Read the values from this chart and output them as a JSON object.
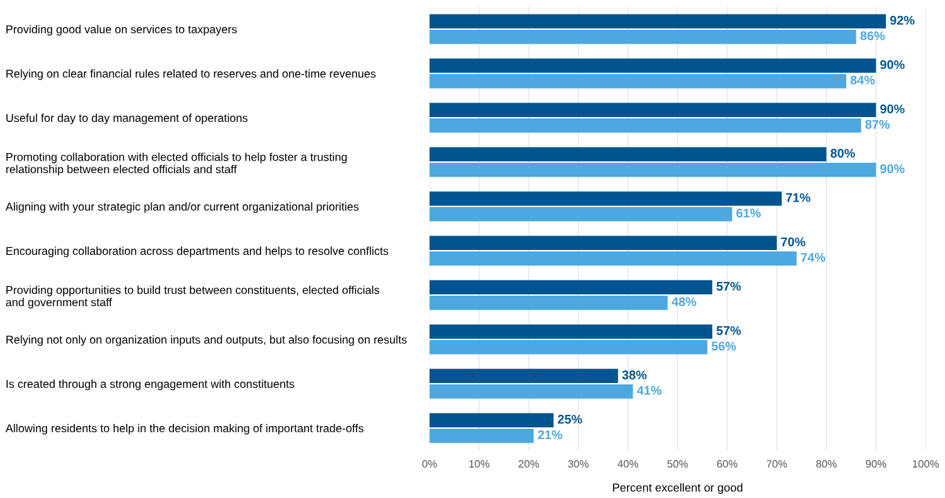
{
  "chart_data": {
    "type": "bar",
    "orientation": "horizontal",
    "xlabel": "Percent excellent or good",
    "categories": [
      "Providing good value on services to taxpayers",
      "Relying on clear financial rules related to reserves and one-time revenues",
      "Useful for day to day management of operations",
      "Promoting collaboration with elected officials to help foster a trusting\nrelationship between elected officials and staff",
      "Aligning with your strategic plan and/or current organizational priorities",
      "Encouraging collaboration across departments and helps to resolve conflicts",
      "Providing opportunities to build trust between constituents, elected officials\nand government staff",
      "Relying not only on organization inputs and outputs, but also focusing on results",
      "Is created through a strong engagement with constituents",
      "Allowing residents to help in the decision making of important trade-offs"
    ],
    "series": [
      {
        "color": "#00548f",
        "values": [
          92,
          90,
          90,
          80,
          71,
          70,
          57,
          57,
          38,
          25
        ],
        "value_labels": [
          "92%",
          "90%",
          "90%",
          "80%",
          "71%",
          "70%",
          "57%",
          "57%",
          "38%",
          "25%"
        ]
      },
      {
        "color": "#4da7e0",
        "values": [
          86,
          84,
          87,
          90,
          61,
          74,
          48,
          56,
          41,
          21
        ],
        "value_labels": [
          "86%",
          "84%",
          "87%",
          "90%",
          "61%",
          "74%",
          "48%",
          "56%",
          "41%",
          "21%"
        ]
      }
    ],
    "xlim": [
      0,
      100
    ],
    "xticks": [
      {
        "value": 0,
        "label": "0%"
      },
      {
        "value": 10,
        "label": "10%"
      },
      {
        "value": 20,
        "label": "20%"
      },
      {
        "value": 30,
        "label": "30%"
      },
      {
        "value": 40,
        "label": "40%"
      },
      {
        "value": 50,
        "label": "50%"
      },
      {
        "value": 60,
        "label": "60%"
      },
      {
        "value": 70,
        "label": "70%"
      },
      {
        "value": 80,
        "label": "80%"
      },
      {
        "value": 90,
        "label": "90%"
      },
      {
        "value": 100,
        "label": "100%"
      }
    ],
    "grid": "x"
  }
}
